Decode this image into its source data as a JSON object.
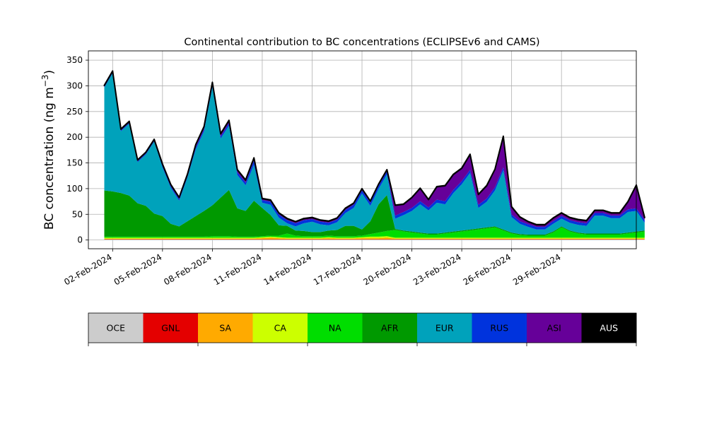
{
  "chart_data": {
    "type": "area",
    "title": "Continental contribution to BC concentrations (ECLIPSEv6 and CAMS)",
    "ylabel_text": "BC concentration (ng m",
    "ylabel_unit_sup": "−3",
    "ylabel_close": ")",
    "xlabel": "",
    "stacked": true,
    "grid": true,
    "x_start": "2024-02-01T12:00",
    "xlim": [
      "2024-01-31T13:00",
      "2024-03-04T12:00"
    ],
    "ylim": [
      -17,
      368
    ],
    "x_ticks": [
      "2024-02-02",
      "2024-02-05",
      "2024-02-08",
      "2024-02-11",
      "2024-02-14",
      "2024-02-17",
      "2024-02-20",
      "2024-02-23",
      "2024-02-26",
      "2024-02-29"
    ],
    "x_tick_labels": [
      "02-Feb-2024",
      "05-Feb-2024",
      "08-Feb-2024",
      "11-Feb-2024",
      "14-Feb-2024",
      "17-Feb-2024",
      "20-Feb-2024",
      "23-Feb-2024",
      "26-Feb-2024",
      "29-Feb-2024"
    ],
    "y_ticks": [
      0,
      50,
      100,
      150,
      200,
      250,
      300,
      350
    ],
    "y_tick_labels": [
      "0",
      "50",
      "100",
      "150",
      "200",
      "250",
      "300",
      "350"
    ],
    "legend": {
      "placement": "bottom-colorbar",
      "entries": [
        "OCE",
        "GNL",
        "SA",
        "CA",
        "NA",
        "AFR",
        "EUR",
        "RUS",
        "ASI",
        "AUS"
      ],
      "colors": [
        "#cccccc",
        "#e40000",
        "#ffaa00",
        "#ccff00",
        "#00dd00",
        "#009900",
        "#00a2bb",
        "#0033dd",
        "#660099",
        "#000000"
      ]
    },
    "series": [
      {
        "name": "OCE",
        "color": "#cccccc",
        "values": [
          1,
          1,
          1,
          1,
          1,
          1,
          1,
          1,
          1,
          1,
          1,
          1,
          1,
          1,
          1,
          1,
          1,
          1,
          1,
          1,
          1,
          1,
          1,
          1,
          1,
          1,
          1,
          1,
          1,
          1,
          1,
          1,
          1,
          1,
          1,
          1,
          1,
          1,
          1,
          1,
          1,
          1,
          1,
          1,
          1,
          1,
          1,
          1,
          1,
          1,
          1,
          1,
          1,
          1,
          1,
          1,
          1,
          1,
          1,
          1,
          1,
          1,
          1,
          1,
          1,
          1
        ]
      },
      {
        "name": "GNL",
        "color": "#e40000",
        "values": [
          0.5,
          0.5,
          0.5,
          0.5,
          0.5,
          0.5,
          0.5,
          0.5,
          0.5,
          0.5,
          0.5,
          0.5,
          0.5,
          0.5,
          0.5,
          0.5,
          0.5,
          0.5,
          0.5,
          0.5,
          0.5,
          0.5,
          0.5,
          0.5,
          0.5,
          0.5,
          0.5,
          0.5,
          0.5,
          0.5,
          0.5,
          0.5,
          0.5,
          0.5,
          0.5,
          0.5,
          0.5,
          0.5,
          0.5,
          0.5,
          0.5,
          0.5,
          0.5,
          0.5,
          0.5,
          0.5,
          0.5,
          0.5,
          0.5,
          0.5,
          0.5,
          0.5,
          0.5,
          0.5,
          0.5,
          0.5,
          0.5,
          0.5,
          0.5,
          0.5,
          0.5,
          0.5,
          0.5,
          0.5,
          0.5,
          0.5
        ]
      },
      {
        "name": "SA",
        "color": "#ffaa00",
        "values": [
          1,
          1,
          1,
          1,
          1,
          1,
          1,
          1,
          1,
          1,
          1,
          1,
          1,
          1,
          1,
          1,
          1,
          1,
          1,
          2,
          3,
          2,
          1,
          1,
          1,
          1,
          1,
          2,
          1,
          1,
          1,
          2,
          2,
          2,
          3,
          1,
          1,
          1,
          1,
          1,
          1,
          1,
          1,
          1,
          1,
          1,
          1,
          1,
          1,
          1,
          1,
          1,
          1,
          1,
          1,
          1,
          1,
          1,
          1,
          1,
          1,
          1,
          1,
          1,
          1,
          1
        ]
      },
      {
        "name": "CA",
        "color": "#ccff00",
        "values": [
          2,
          2,
          2,
          2,
          2,
          2,
          2,
          2,
          2,
          2,
          2,
          2,
          2,
          2,
          2,
          2,
          2,
          2,
          2,
          2,
          2,
          2,
          2,
          2,
          2,
          2,
          2,
          2,
          2,
          2,
          2,
          2,
          3,
          3,
          3,
          2,
          2,
          2,
          2,
          2,
          2,
          2,
          2,
          2,
          2,
          2,
          2,
          2,
          2,
          2,
          2,
          2,
          2,
          2,
          2,
          2,
          2,
          2,
          2,
          2,
          2,
          2,
          2,
          2,
          2,
          2
        ]
      },
      {
        "name": "NA",
        "color": "#00dd00",
        "values": [
          2,
          2,
          2,
          2,
          2,
          2,
          2,
          2,
          2,
          2,
          2,
          2,
          2,
          3,
          3,
          3,
          2,
          2,
          2,
          2,
          2,
          3,
          8,
          4,
          3,
          3,
          3,
          3,
          3,
          3,
          3,
          3,
          5,
          8,
          10,
          15,
          12,
          10,
          8,
          6,
          6,
          8,
          10,
          12,
          14,
          16,
          18,
          20,
          14,
          8,
          5,
          4,
          4,
          4,
          10,
          20,
          12,
          8,
          6,
          6,
          6,
          6,
          6,
          8,
          10,
          12
        ]
      },
      {
        "name": "AFR",
        "color": "#009900",
        "values": [
          90,
          88,
          85,
          80,
          65,
          60,
          45,
          40,
          25,
          20,
          30,
          40,
          50,
          60,
          75,
          90,
          55,
          50,
          70,
          55,
          40,
          20,
          15,
          10,
          10,
          8,
          8,
          10,
          12,
          20,
          20,
          12,
          25,
          55,
          70,
          2,
          2,
          2,
          2,
          2,
          2,
          2,
          2,
          2,
          2,
          2,
          2,
          2,
          2,
          2,
          2,
          2,
          2,
          2,
          2,
          2,
          2,
          2,
          2,
          2,
          2,
          2,
          2,
          2,
          2,
          2
        ]
      },
      {
        "name": "EUR",
        "color": "#00a2bb",
        "values": [
          200,
          230,
          120,
          140,
          80,
          100,
          140,
          95,
          70,
          50,
          85,
          130,
          155,
          230,
          115,
          125,
          65,
          50,
          70,
          10,
          20,
          15,
          5,
          8,
          15,
          20,
          15,
          10,
          15,
          25,
          35,
          70,
          30,
          30,
          40,
          20,
          30,
          40,
          55,
          45,
          60,
          55,
          75,
          90,
          110,
          40,
          50,
          70,
          115,
          30,
          20,
          15,
          10,
          10,
          15,
          15,
          15,
          15,
          15,
          35,
          35,
          30,
          30,
          40,
          40,
          15
        ]
      },
      {
        "name": "RUS",
        "color": "#0033dd",
        "values": [
          2,
          2,
          2,
          2,
          2,
          2,
          2,
          3,
          3,
          3,
          3,
          4,
          4,
          4,
          4,
          5,
          5,
          5,
          8,
          5,
          6,
          6,
          6,
          6,
          6,
          5,
          5,
          5,
          5,
          6,
          6,
          6,
          6,
          6,
          6,
          6,
          6,
          6,
          6,
          6,
          6,
          6,
          6,
          6,
          6,
          6,
          6,
          6,
          6,
          5,
          5,
          5,
          5,
          5,
          5,
          5,
          5,
          5,
          5,
          5,
          5,
          5,
          5,
          5,
          5,
          5
        ]
      },
      {
        "name": "ASI",
        "color": "#660099",
        "values": [
          2,
          2,
          2,
          2,
          2,
          2,
          2,
          3,
          3,
          3,
          3,
          5,
          5,
          5,
          5,
          5,
          5,
          5,
          5,
          3,
          3,
          3,
          3,
          3,
          3,
          3,
          3,
          3,
          3,
          3,
          3,
          3,
          3,
          3,
          3,
          20,
          15,
          20,
          25,
          15,
          25,
          30,
          30,
          25,
          30,
          20,
          25,
          35,
          60,
          15,
          8,
          5,
          4,
          4,
          6,
          6,
          5,
          5,
          5,
          5,
          5,
          5,
          5,
          15,
          45,
          5
        ]
      },
      {
        "name": "AUS",
        "color": "#000000",
        "values": [
          0.5,
          0.5,
          0.5,
          0.5,
          0.5,
          0.5,
          0.5,
          0.5,
          0.5,
          0.5,
          0.5,
          0.5,
          0.5,
          0.5,
          0.5,
          0.5,
          0.5,
          0.5,
          0.5,
          0.5,
          0.5,
          0.5,
          0.5,
          0.5,
          0.5,
          0.5,
          0.5,
          0.5,
          0.5,
          0.5,
          0.5,
          0.5,
          0.5,
          0.5,
          0.5,
          0.5,
          0.5,
          0.5,
          0.5,
          0.5,
          0.5,
          0.5,
          0.5,
          0.5,
          0.5,
          0.5,
          0.5,
          0.5,
          0.5,
          0.5,
          0.5,
          0.5,
          0.5,
          0.5,
          0.5,
          0.5,
          0.5,
          0.5,
          0.5,
          0.5,
          0.5,
          0.5,
          0.5,
          0.5,
          0.5,
          0.5
        ]
      }
    ]
  }
}
